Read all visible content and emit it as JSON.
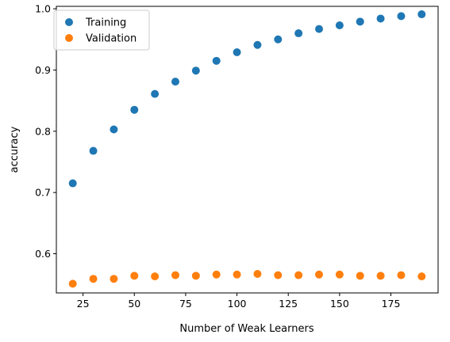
{
  "chart_data": {
    "type": "scatter",
    "xlabel": "Number of Weak Learners",
    "ylabel": "accuracy",
    "xlim": [
      12,
      198
    ],
    "ylim": [
      0.536,
      1.004
    ],
    "xticks": [
      25,
      50,
      75,
      100,
      125,
      150,
      175
    ],
    "yticks": [
      0.6,
      0.7,
      0.8,
      0.9,
      1.0
    ],
    "xtick_labels": [
      "25",
      "50",
      "75",
      "100",
      "125",
      "150",
      "175"
    ],
    "ytick_labels": [
      "0.6",
      "0.7",
      "0.8",
      "0.9",
      "1.0"
    ],
    "grid": false,
    "legend_position": "top-left",
    "x": [
      20,
      30,
      40,
      50,
      60,
      70,
      80,
      90,
      100,
      110,
      120,
      130,
      140,
      150,
      160,
      170,
      180,
      190
    ],
    "series": [
      {
        "name": "Training",
        "color": "#1f77b4",
        "values": [
          0.715,
          0.768,
          0.803,
          0.835,
          0.861,
          0.881,
          0.899,
          0.915,
          0.929,
          0.941,
          0.95,
          0.96,
          0.967,
          0.973,
          0.979,
          0.984,
          0.988,
          0.991
        ]
      },
      {
        "name": "Validation",
        "color": "#ff7f0e",
        "values": [
          0.551,
          0.559,
          0.559,
          0.564,
          0.563,
          0.565,
          0.564,
          0.566,
          0.566,
          0.567,
          0.565,
          0.565,
          0.566,
          0.566,
          0.564,
          0.564,
          0.565,
          0.563
        ]
      }
    ]
  }
}
